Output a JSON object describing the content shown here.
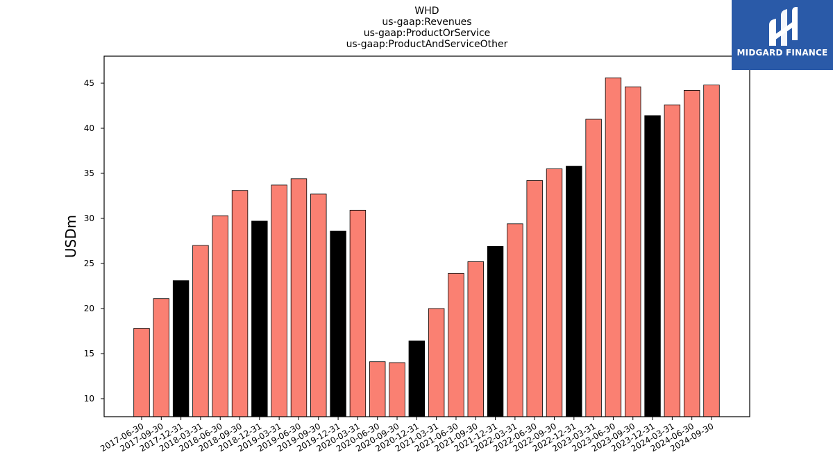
{
  "logo": {
    "brand_text": "MIDGARD FINANCE"
  },
  "colors": {
    "bar_default": "#fa8072",
    "bar_highlight": "#000000",
    "logo_bg": "#2a5aa8"
  },
  "chart_data": {
    "type": "bar",
    "title_lines": [
      "WHD",
      "us-gaap:Revenues",
      "us-gaap:ProductOrService",
      "us-gaap:ProductAndServiceOther"
    ],
    "ylabel": "USDm",
    "xlabel": "",
    "ylim": [
      8,
      48
    ],
    "yticks": [
      10,
      15,
      20,
      25,
      30,
      35,
      40,
      45
    ],
    "grid": false,
    "categories": [
      "2017-06-30",
      "2017-09-30",
      "2017-12-31",
      "2018-03-31",
      "2018-06-30",
      "2018-09-30",
      "2018-12-31",
      "2019-03-31",
      "2019-06-30",
      "2019-09-30",
      "2019-12-31",
      "2020-03-31",
      "2020-06-30",
      "2020-09-30",
      "2020-12-31",
      "2021-03-31",
      "2021-06-30",
      "2021-09-30",
      "2021-12-31",
      "2022-03-31",
      "2022-06-30",
      "2022-09-30",
      "2022-12-31",
      "2023-03-31",
      "2023-06-30",
      "2023-09-30",
      "2023-12-31",
      "2024-03-31",
      "2024-06-30",
      "2024-09-30"
    ],
    "values": [
      17.8,
      21.1,
      23.1,
      27.0,
      30.3,
      33.1,
      29.7,
      33.7,
      34.4,
      32.7,
      28.6,
      30.9,
      14.1,
      14.0,
      16.4,
      20.0,
      23.9,
      25.2,
      26.9,
      29.4,
      34.2,
      35.5,
      35.8,
      41.0,
      45.6,
      44.6,
      41.4,
      42.6,
      44.2,
      44.8
    ],
    "highlight": [
      false,
      false,
      true,
      false,
      false,
      false,
      true,
      false,
      false,
      false,
      true,
      false,
      false,
      false,
      true,
      false,
      false,
      false,
      true,
      false,
      false,
      false,
      true,
      false,
      false,
      false,
      true,
      false,
      false,
      false
    ]
  }
}
